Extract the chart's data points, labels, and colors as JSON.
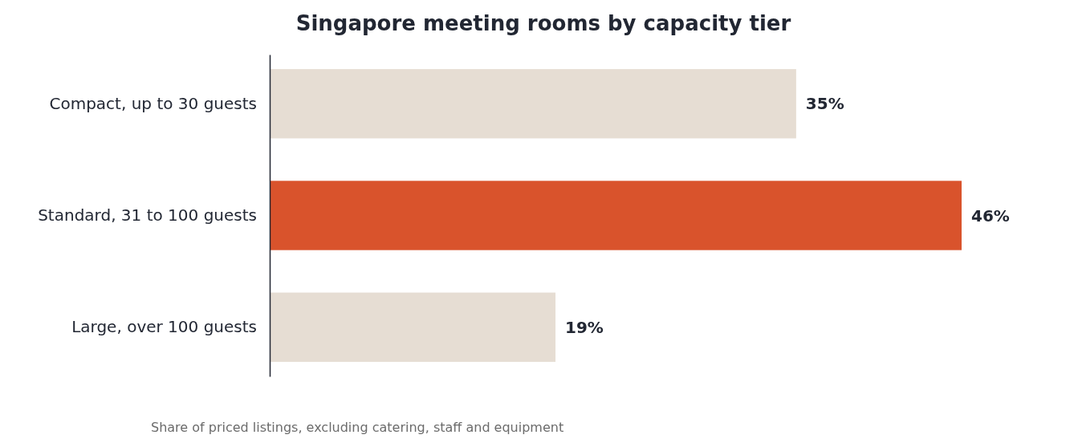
{
  "chart_data": {
    "type": "bar",
    "orientation": "horizontal",
    "title": "Singapore meeting rooms by capacity tier",
    "categories": [
      "Compact, up to 30 guests",
      "Standard, 31 to 100 guests",
      "Large, over 100 guests"
    ],
    "values": [
      35,
      46,
      19
    ],
    "colors": [
      "#e6ddd3",
      "#d9532c",
      "#e6ddd3"
    ],
    "value_labels": [
      "35%",
      "46%",
      "19%"
    ],
    "annotations": [
      "Share of priced listings, excluding catering, staff and equipment"
    ]
  }
}
